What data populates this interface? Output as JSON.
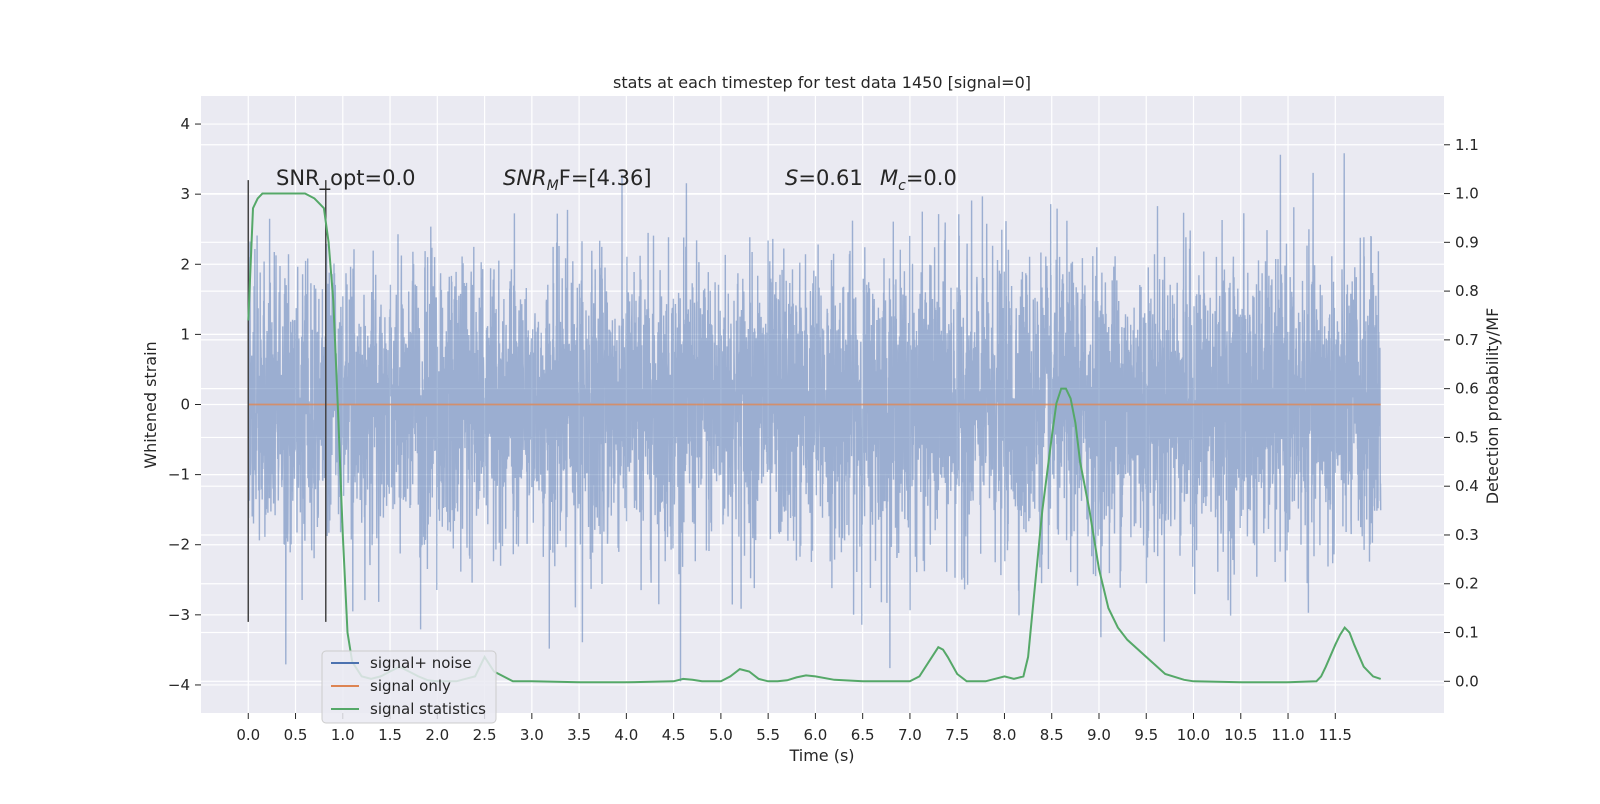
{
  "chart_data": {
    "type": "line",
    "title": "stats at each timestep for test data 1450 [signal=0]",
    "xlabel": "Time (s)",
    "ylabel": "Whitened strain",
    "y2label": "Detection probability/MF",
    "xlim": [
      -0.5,
      12.65
    ],
    "ylim": [
      -4.4,
      4.4
    ],
    "y2lim": [
      -0.065,
      1.2
    ],
    "x_ticks": [
      "0.0",
      "0.5",
      "1.0",
      "1.5",
      "2.0",
      "2.5",
      "3.0",
      "3.5",
      "4.0",
      "4.5",
      "5.0",
      "5.5",
      "6.0",
      "6.5",
      "7.0",
      "7.5",
      "8.0",
      "8.5",
      "9.0",
      "9.5",
      "10.0",
      "10.5",
      "11.0",
      "11.5"
    ],
    "y_ticks": [
      "4",
      "3",
      "2",
      "1",
      "0",
      "−1",
      "−2",
      "−3",
      "−4"
    ],
    "y2_ticks": [
      "1.1",
      "1.0",
      "0.9",
      "0.8",
      "0.7",
      "0.6",
      "0.5",
      "0.4",
      "0.3",
      "0.2",
      "0.1",
      "0.0"
    ],
    "grid": true,
    "legend_position": "lower-left",
    "annotations": {
      "snr_opt": "SNR_opt=0.0",
      "snr_mf_main": "SNR",
      "snr_mf_sub": "M",
      "snr_mf_rest": "F=[4.36]",
      "s_main": "S",
      "s_rest": "=0.61",
      "mc_main": "M",
      "mc_sub": "c",
      "mc_rest": "=0.0"
    },
    "vertical_markers": [
      {
        "x": 0.0,
        "y": [
          -3.1,
          3.2
        ]
      },
      {
        "x": 0.82,
        "y": [
          -3.1,
          3.2
        ]
      }
    ],
    "series": [
      {
        "name": "signal+ noise",
        "color": "#4c72b0",
        "noise": {
          "x_start": 0.0,
          "x_end": 11.98,
          "sigma": 1.0,
          "min": -3.95,
          "max": 4.1
        }
      },
      {
        "name": "signal only",
        "color": "#dd8452",
        "x": [
          0.0,
          11.98
        ],
        "y": [
          0.0,
          0.0
        ]
      },
      {
        "name": "signal statistics",
        "color": "#55a868",
        "axis": "right",
        "x": [
          0.0,
          0.05,
          0.1,
          0.15,
          0.2,
          0.3,
          0.4,
          0.5,
          0.6,
          0.7,
          0.75,
          0.8,
          0.85,
          0.9,
          0.95,
          1.0,
          1.05,
          1.1,
          1.2,
          1.3,
          1.4,
          1.5,
          1.6,
          1.7,
          1.8,
          1.9,
          2.0,
          2.2,
          2.4,
          2.5,
          2.6,
          2.8,
          3.0,
          3.5,
          4.0,
          4.5,
          4.6,
          4.7,
          4.8,
          5.0,
          5.1,
          5.2,
          5.3,
          5.4,
          5.5,
          5.6,
          5.7,
          5.8,
          5.9,
          6.0,
          6.2,
          6.5,
          7.0,
          7.1,
          7.2,
          7.3,
          7.35,
          7.4,
          7.5,
          7.6,
          7.8,
          8.0,
          8.1,
          8.2,
          8.25,
          8.3,
          8.4,
          8.5,
          8.55,
          8.6,
          8.65,
          8.7,
          8.75,
          8.8,
          8.9,
          9.0,
          9.1,
          9.2,
          9.3,
          9.5,
          9.7,
          9.9,
          10.0,
          10.5,
          11.0,
          11.3,
          11.35,
          11.4,
          11.5,
          11.55,
          11.6,
          11.65,
          11.7,
          11.8,
          11.9,
          11.98
        ],
        "y": [
          0.74,
          0.97,
          0.99,
          1.0,
          1.0,
          1.0,
          1.0,
          1.0,
          1.0,
          0.99,
          0.98,
          0.97,
          0.9,
          0.78,
          0.55,
          0.3,
          0.1,
          0.04,
          0.01,
          0.005,
          0.01,
          0.02,
          0.03,
          0.02,
          0.01,
          0.002,
          0.0,
          0.0,
          0.01,
          0.05,
          0.02,
          0.0,
          0.0,
          -0.002,
          -0.002,
          0.0,
          0.005,
          0.003,
          0.0,
          0.0,
          0.01,
          0.025,
          0.02,
          0.005,
          0.0,
          0.0,
          0.002,
          0.008,
          0.012,
          0.01,
          0.003,
          0.0,
          0.0,
          0.01,
          0.04,
          0.07,
          0.065,
          0.05,
          0.015,
          0.0,
          0.0,
          0.01,
          0.005,
          0.01,
          0.05,
          0.15,
          0.35,
          0.5,
          0.57,
          0.6,
          0.6,
          0.58,
          0.53,
          0.45,
          0.35,
          0.23,
          0.15,
          0.11,
          0.085,
          0.05,
          0.015,
          0.003,
          0.0,
          -0.002,
          -0.002,
          0.0,
          0.01,
          0.03,
          0.075,
          0.095,
          0.11,
          0.1,
          0.075,
          0.03,
          0.01,
          0.005
        ]
      }
    ]
  },
  "legend": {
    "items": [
      {
        "label": "signal+ noise",
        "color": "#4c72b0"
      },
      {
        "label": "signal only",
        "color": "#dd8452"
      },
      {
        "label": "signal statistics",
        "color": "#55a868"
      }
    ]
  }
}
